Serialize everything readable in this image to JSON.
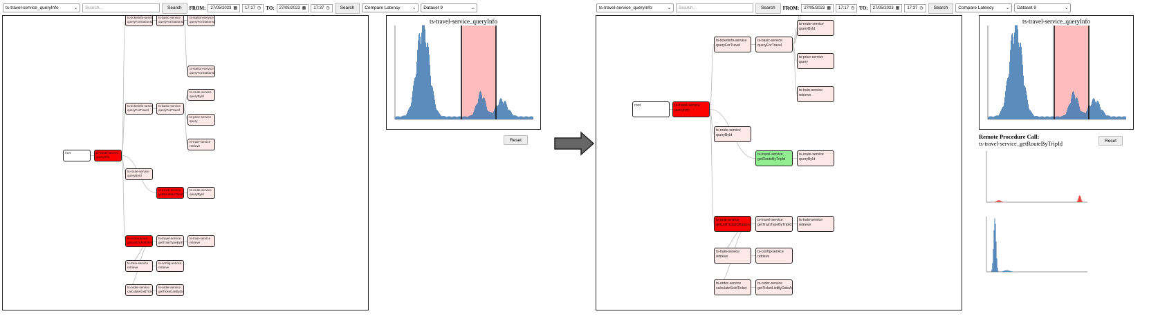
{
  "left": {
    "service_select": "ts-travel-service_queryInfo",
    "search_placeholder": "Search...",
    "search_label": "Search",
    "from_label": "FROM:",
    "from_date": "27/05/2023",
    "from_time": "17:17",
    "to_label": "TO:",
    "to_date": "27/05/2023",
    "to_time": "17:37",
    "search2_label": "Search",
    "mode_select": "Compare Latency",
    "dataset_select": "Dataset 9",
    "histogram_title": "ts-travel-service_queryInfo",
    "reset_label": "Reset",
    "nodes": [
      {
        "id": "root",
        "l1": "root",
        "l2": ""
      },
      {
        "id": "n1",
        "l1": "ts-travel-service",
        "l2": "queryInfo"
      },
      {
        "id": "n2",
        "l1": "ts-ticketinfo-service",
        "l2": "queryForTravel"
      },
      {
        "id": "n3",
        "l1": "ts-basic-service",
        "l2": "queryForTravel"
      },
      {
        "id": "n4",
        "l1": "ts-route-service",
        "l2": "queryById"
      },
      {
        "id": "n5",
        "l1": "ts-price-service",
        "l2": "query"
      },
      {
        "id": "n6",
        "l1": "ts-train-service",
        "l2": "retrieve"
      },
      {
        "id": "n7",
        "l1": "ts-route-service",
        "l2": "queryById"
      },
      {
        "id": "n8",
        "l1": "ts-travel-service",
        "l2": "getRouteByTripId"
      },
      {
        "id": "n9",
        "l1": "ts-route-service",
        "l2": "queryById"
      },
      {
        "id": "n10",
        "l1": "ts-seat-service",
        "l2": "getLeftTicketOfInterval"
      },
      {
        "id": "n11",
        "l1": "ts-travel-service",
        "l2": "getTrainTypeByTripId"
      },
      {
        "id": "n12",
        "l1": "ts-train-service",
        "l2": "retrieve"
      },
      {
        "id": "n13",
        "l1": "ts-train-service",
        "l2": "retrieve"
      },
      {
        "id": "n14",
        "l1": "ts-config-service",
        "l2": "retrieve"
      },
      {
        "id": "n15",
        "l1": "ts-order-service",
        "l2": "calculateSoldTicket"
      },
      {
        "id": "n16",
        "l1": "ts-order-service",
        "l2": "getTicketListByDateAndTripId"
      },
      {
        "id": "n17",
        "l1": "ts-ticketinfo-service",
        "l2": "queryForStationId"
      },
      {
        "id": "n18",
        "l1": "ts-basic-service",
        "l2": "queryForStationId"
      },
      {
        "id": "n19",
        "l1": "ts-station-service",
        "l2": "queryForStationId"
      },
      {
        "id": "n20",
        "l1": "ts-station-service",
        "l2": "queryForStationId"
      }
    ]
  },
  "right": {
    "service_select": "ts-travel-service_queryInfo",
    "search_placeholder": "Search...",
    "search_label": "Search",
    "from_label": "FROM:",
    "from_date": "27/05/2023",
    "from_time": "17:17",
    "to_label": "TO:",
    "to_date": "27/05/2023",
    "to_time": "17:37",
    "search2_label": "Search",
    "mode_select": "Compare Latency",
    "dataset_select": "Dataset 9",
    "histogram_title": "ts-travel-service_queryInfo",
    "reset_label": "Reset",
    "rpc_title": "Remote Procedure Call:",
    "rpc_name": "ts-travel-service_getRouteByTripId",
    "nodes": [
      {
        "id": "root",
        "l1": "root",
        "l2": ""
      },
      {
        "id": "n1",
        "l1": "ts-travel-service",
        "l2": "queryInfo"
      },
      {
        "id": "n2",
        "l1": "ts-ticketinfo-service",
        "l2": "queryForTravel"
      },
      {
        "id": "n3",
        "l1": "ts-basic-service",
        "l2": "queryForTravel"
      },
      {
        "id": "n4",
        "l1": "ts-route-service",
        "l2": "queryById"
      },
      {
        "id": "n5",
        "l1": "ts-price-service",
        "l2": "query"
      },
      {
        "id": "n6",
        "l1": "ts-train-service",
        "l2": "retrieve"
      },
      {
        "id": "n7",
        "l1": "ts-route-service",
        "l2": "queryById"
      },
      {
        "id": "n8",
        "l1": "ts-travel-service",
        "l2": "getRouteByTripId"
      },
      {
        "id": "n9",
        "l1": "ts-route-service",
        "l2": "queryById"
      },
      {
        "id": "n10",
        "l1": "ts-seat-service",
        "l2": "getLeftTicketOfInterval"
      },
      {
        "id": "n11",
        "l1": "ts-travel-service",
        "l2": "getTrainTypeByTripId"
      },
      {
        "id": "n12",
        "l1": "ts-train-service",
        "l2": "retrieve"
      },
      {
        "id": "n13",
        "l1": "ts-train-service",
        "l2": "retrieve"
      },
      {
        "id": "n14",
        "l1": "ts-config-service",
        "l2": "retrieve"
      },
      {
        "id": "n15",
        "l1": "ts-order-service",
        "l2": "calculateSoldTicket"
      },
      {
        "id": "n16",
        "l1": "ts-order-service",
        "l2": "getTicketListByDateAndTripId"
      }
    ]
  },
  "colors": {
    "selected_node": "#fd0000",
    "highlight_node": "#90ee90",
    "normal_node": "#fde8e8",
    "histogram_bar": "#4a7fb5",
    "selection_band": "#ffbcbc",
    "rpc_bar": "#e53935"
  },
  "icons": {
    "arrow": "arrow-right-icon",
    "calendar": "calendar-icon",
    "clock": "clock-icon",
    "chevron": "chevron-down-icon"
  }
}
